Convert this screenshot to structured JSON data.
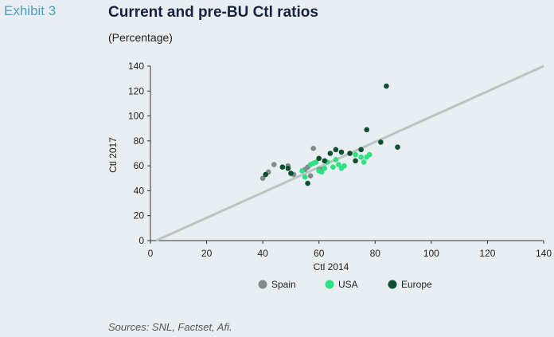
{
  "header": {
    "exhibit": "Exhibit 3",
    "title": "Current and pre-BU Ctl ratios",
    "subtitle": "(Percentage)"
  },
  "footer": {
    "source": "Sources: SNL, Factset, Afi."
  },
  "chart_data": {
    "type": "scatter",
    "xlabel": "Ctl 2014",
    "ylabel": "Ctl 2017",
    "xlim": [
      0,
      140
    ],
    "ylim": [
      0,
      140
    ],
    "xticks": [
      0,
      20,
      40,
      60,
      80,
      100,
      120,
      140
    ],
    "yticks": [
      0,
      20,
      40,
      60,
      80,
      100,
      120,
      140
    ],
    "grid": false,
    "legend": "bottom-center",
    "reference_line": {
      "points": [
        [
          2,
          0
        ],
        [
          140,
          140
        ]
      ],
      "color": "#b8c6c2"
    },
    "series": [
      {
        "name": "Spain",
        "color": "#7f8c89",
        "points": [
          [
            40,
            50
          ],
          [
            42,
            55
          ],
          [
            44,
            61
          ],
          [
            49,
            60
          ],
          [
            51,
            53
          ],
          [
            55,
            57
          ],
          [
            56,
            59
          ],
          [
            57,
            52
          ],
          [
            58,
            74
          ],
          [
            60,
            57
          ],
          [
            61,
            57
          ]
        ]
      },
      {
        "name": "USA",
        "color": "#2ee082",
        "points": [
          [
            54,
            56
          ],
          [
            55,
            51
          ],
          [
            57,
            61
          ],
          [
            58,
            62
          ],
          [
            59,
            63
          ],
          [
            60,
            56
          ],
          [
            61,
            55
          ],
          [
            62,
            58
          ],
          [
            63,
            63
          ],
          [
            65,
            59
          ],
          [
            66,
            65
          ],
          [
            67,
            61
          ],
          [
            68,
            58
          ],
          [
            69,
            60
          ],
          [
            73,
            69
          ],
          [
            75,
            67
          ],
          [
            76,
            63
          ],
          [
            77,
            67
          ],
          [
            78,
            69
          ]
        ]
      },
      {
        "name": "Europe",
        "color": "#0d4f30",
        "points": [
          [
            41,
            53
          ],
          [
            47,
            59
          ],
          [
            49,
            58
          ],
          [
            50,
            54
          ],
          [
            56,
            46
          ],
          [
            60,
            66
          ],
          [
            62,
            64
          ],
          [
            64,
            70
          ],
          [
            66,
            73
          ],
          [
            68,
            71
          ],
          [
            71,
            70
          ],
          [
            73,
            64
          ],
          [
            75,
            73
          ],
          [
            77,
            89
          ],
          [
            82,
            79
          ],
          [
            84,
            124
          ],
          [
            88,
            75
          ]
        ]
      }
    ]
  }
}
